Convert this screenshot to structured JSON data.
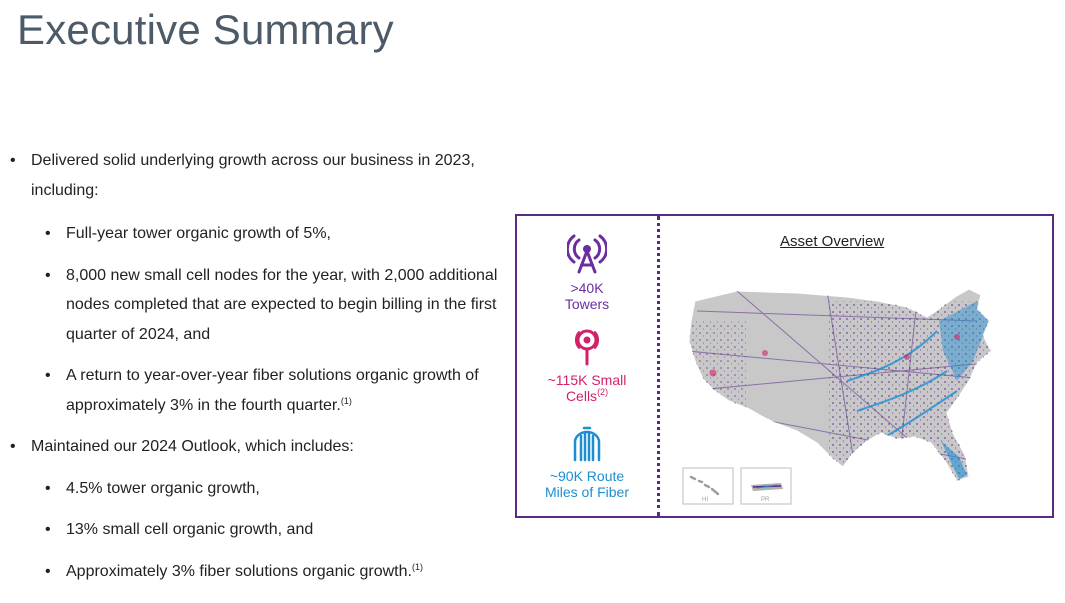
{
  "title": "Executive Summary",
  "bullets": {
    "b1": "Delivered solid underlying growth across our business in 2023, including:",
    "b1_items": [
      "Full-year tower organic growth of 5%,",
      "8,000 new small cell nodes for the year, with 2,000 additional nodes completed that are expected to begin billing in the first quarter of 2024, and",
      "A return to year-over-year fiber solutions organic growth of approximately 3% in the fourth quarter."
    ],
    "b1_item3_sup": "(1)",
    "b2": "Maintained our 2024 Outlook, which includes:",
    "b2_items": [
      "4.5% tower organic growth,",
      "13% small cell organic growth, and",
      "Approximately 3% fiber solutions organic growth."
    ],
    "b2_item3_sup": "(1)"
  },
  "panel": {
    "towers_line1": ">40K",
    "towers_line2": "Towers",
    "cells_line1": "~115K Small",
    "cells_line2": "Cells",
    "cells_sup": "(2)",
    "fiber_line1": "~90K Route",
    "fiber_line2": "Miles of Fiber",
    "map_title": "Asset Overview",
    "hi_label": "HI",
    "pr_label": "PR"
  },
  "colors": {
    "title": "#4d5b68",
    "purple": "#5b2a86",
    "towers": "#6a2ea0",
    "cells": "#d2216b",
    "fiber": "#1c8fd3",
    "map_land": "#c8c8c8"
  },
  "icons": [
    "tower-icon",
    "small-cell-icon",
    "fiber-icon",
    "us-map"
  ]
}
